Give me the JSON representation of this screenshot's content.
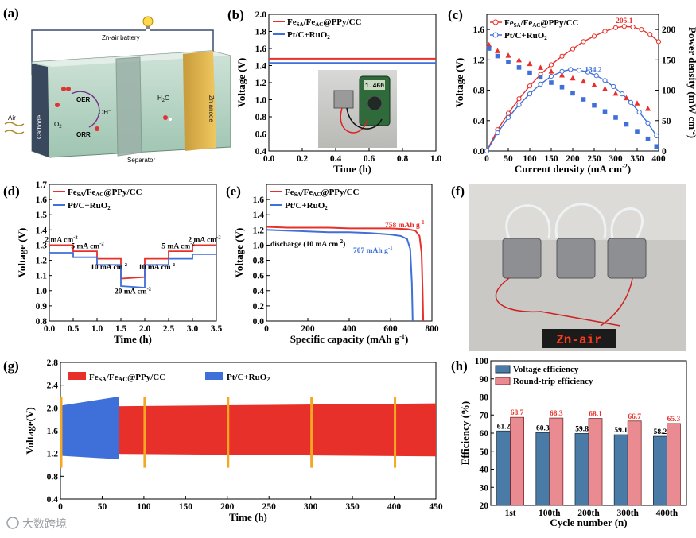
{
  "panel_labels": [
    "(a)",
    "(b)",
    "(c)",
    "(d)",
    "(e)",
    "(f)",
    "(g)",
    "(h)"
  ],
  "schematic": {
    "battery": "Zn-air battery",
    "cathode": "Cathode",
    "anode": "Zn anode",
    "separator": "Separator",
    "air": "Air",
    "oer": "OER",
    "orr": "ORR",
    "o2": "O",
    "o2_sub": "2",
    "oh": "OH",
    "oh_sup": "−",
    "h2o": "H",
    "h2o_sub": "2",
    "h2o_end": "O"
  },
  "legend": {
    "fe_main": "Fe",
    "fe_sub1": "SA",
    "fe_mid": "/Fe",
    "fe_sub2": "AC",
    "fe_tail": "@PPy/CC",
    "pt_main": "Pt/C+RuO",
    "pt_sub": "2"
  },
  "colors": {
    "red": "#e8302a",
    "blue": "#3f6fd8",
    "orange": "#f5a623",
    "bar_blue": "#4a7ba6",
    "bar_red": "#e98b90"
  },
  "watermark": "大数跨境",
  "led_text": "Zn-air",
  "chart_data": [
    {
      "id": "b",
      "type": "line",
      "xlabel": "Time (h)",
      "ylabel": "Voltage (V)",
      "xlim": [
        0,
        1.0
      ],
      "ylim": [
        0.4,
        2.0
      ],
      "xticks": [
        "0.0",
        "0.2",
        "0.4",
        "0.6",
        "0.8",
        "1.0"
      ],
      "yticks": [
        "0.4",
        "0.6",
        "0.8",
        "1.0",
        "1.2",
        "1.4",
        "1.6",
        "1.8",
        "2.0"
      ],
      "series": [
        {
          "name": "FeSA/FeAC@PPy/CC",
          "x": [
            0,
            1.0
          ],
          "y": [
            1.48,
            1.48
          ]
        },
        {
          "name": "Pt/C+RuO2",
          "x": [
            0,
            1.0
          ],
          "y": [
            1.43,
            1.43
          ]
        }
      ],
      "inset": "photo of battery connected to multimeter",
      "meter_reading": "1.460"
    },
    {
      "id": "c",
      "type": "line+scatter",
      "xlabel": "Current density (mA cm",
      "xlabel_sup": "-2",
      "xlabel_end": ")",
      "ylabel": "Voltage (V)",
      "y2label": "Power density (mW cm",
      "y2label_sup": "-2",
      "y2label_end": ")",
      "xlim": [
        0,
        400
      ],
      "ylim": [
        0,
        1.8
      ],
      "y2lim": [
        0,
        225
      ],
      "xticks": [
        "0",
        "50",
        "100",
        "150",
        "200",
        "250",
        "300",
        "350",
        "400"
      ],
      "yticks": [
        "0.0",
        "0.4",
        "0.8",
        "1.2",
        "1.6"
      ],
      "y2ticks": [
        "0",
        "50",
        "100",
        "150",
        "200"
      ],
      "peak_labels": [
        "205.1",
        "134.2"
      ],
      "series": [
        {
          "name": "FeSA/FeAC@PPy/CC power",
          "x": [
            0,
            25,
            50,
            75,
            100,
            125,
            150,
            175,
            200,
            225,
            250,
            275,
            300,
            320,
            340,
            360,
            380,
            400
          ],
          "y": [
            0,
            35,
            62,
            86,
            107,
            126,
            142,
            156,
            168,
            180,
            189,
            197,
            203,
            205.1,
            204,
            200,
            192,
            180
          ]
        },
        {
          "name": "Pt/C+RuO2 power",
          "x": [
            0,
            25,
            50,
            75,
            100,
            125,
            150,
            175,
            195,
            215,
            235,
            255,
            275,
            295,
            315,
            335,
            355,
            375,
            395
          ],
          "y": [
            0,
            30,
            55,
            76,
            94,
            110,
            123,
            131,
            134.2,
            133,
            130,
            124,
            116,
            106,
            94,
            80,
            64,
            46,
            25
          ]
        },
        {
          "name": "FeSA/FeAC@PPy/CC voltage",
          "x": [
            5,
            25,
            50,
            75,
            100,
            125,
            150,
            175,
            200,
            225,
            250,
            275,
            300,
            325,
            350,
            375
          ],
          "y": [
            1.4,
            1.32,
            1.26,
            1.2,
            1.15,
            1.1,
            1.05,
            1.0,
            0.96,
            0.92,
            0.87,
            0.82,
            0.76,
            0.7,
            0.63,
            0.56
          ]
        },
        {
          "name": "Pt/C+RuO2 voltage",
          "x": [
            5,
            25,
            50,
            75,
            100,
            125,
            150,
            175,
            200,
            225,
            250,
            275,
            300,
            325,
            350,
            375,
            395
          ],
          "y": [
            1.35,
            1.25,
            1.17,
            1.1,
            1.03,
            0.97,
            0.9,
            0.84,
            0.76,
            0.68,
            0.6,
            0.52,
            0.44,
            0.35,
            0.26,
            0.16,
            0.06
          ]
        }
      ]
    },
    {
      "id": "d",
      "type": "line",
      "xlabel": "Time (h)",
      "ylabel": "Voltage (V)",
      "xlim": [
        0,
        3.5
      ],
      "ylim": [
        0.8,
        1.7
      ],
      "xticks": [
        "0.0",
        "0.5",
        "1.0",
        "1.5",
        "2.0",
        "2.5",
        "3.0",
        "3.5"
      ],
      "yticks": [
        "0.8",
        "0.9",
        "1.0",
        "1.1",
        "1.2",
        "1.3",
        "1.4",
        "1.5",
        "1.6",
        "1.7"
      ],
      "annotations": [
        "2 mA cm",
        "5 mA cm",
        "10 mA cm",
        "20 mA cm",
        "10 mA cm",
        "5 mA cm",
        "2 mA cm"
      ],
      "annotation_sup": "-2",
      "series": [
        {
          "name": "FeSA/FeAC@PPy/CC",
          "x": [
            0,
            0.5,
            0.5,
            1.0,
            1.0,
            1.5,
            1.5,
            2.0,
            2.0,
            2.5,
            2.5,
            3.0,
            3.0,
            3.5
          ],
          "y": [
            1.3,
            1.3,
            1.26,
            1.26,
            1.21,
            1.21,
            1.08,
            1.09,
            1.21,
            1.21,
            1.26,
            1.26,
            1.3,
            1.3
          ]
        },
        {
          "name": "Pt/C+RuO2",
          "x": [
            0,
            0.5,
            0.5,
            1.0,
            1.0,
            1.5,
            1.5,
            2.0,
            2.0,
            2.5,
            2.5,
            3.0,
            3.0,
            3.5
          ],
          "y": [
            1.25,
            1.25,
            1.22,
            1.22,
            1.17,
            1.17,
            1.03,
            1.02,
            1.17,
            1.17,
            1.21,
            1.21,
            1.24,
            1.24
          ]
        }
      ]
    },
    {
      "id": "e",
      "type": "line",
      "xlabel": "Specific capacity (mAh g",
      "xlabel_sup": "-1",
      "xlabel_end": ")",
      "ylabel": "Voltage (V)",
      "xlim": [
        0,
        800
      ],
      "ylim": [
        0,
        1.8
      ],
      "xticks": [
        "0",
        "200",
        "400",
        "600",
        "800"
      ],
      "yticks": [
        "0.0",
        "0.2",
        "0.4",
        "0.6",
        "0.8",
        "1.0",
        "1.2",
        "1.4",
        "1.6"
      ],
      "annotations": [
        "758 mAh g",
        "707 mAh g",
        "discharge (10 mA cm"
      ],
      "annotation_sups": [
        "-1",
        "-1",
        "-2"
      ],
      "annotation_end": ")",
      "series": [
        {
          "name": "FeSA/FeAC@PPy/CC",
          "x": [
            0,
            100,
            200,
            300,
            400,
            500,
            600,
            680,
            720,
            740,
            750,
            755,
            758
          ],
          "y": [
            1.24,
            1.23,
            1.23,
            1.23,
            1.22,
            1.22,
            1.22,
            1.21,
            1.19,
            1.12,
            0.9,
            0.4,
            0.0
          ]
        },
        {
          "name": "Pt/C+RuO2",
          "x": [
            0,
            100,
            200,
            300,
            400,
            500,
            600,
            650,
            680,
            695,
            703,
            707
          ],
          "y": [
            1.2,
            1.19,
            1.18,
            1.17,
            1.17,
            1.16,
            1.14,
            1.12,
            1.08,
            0.95,
            0.5,
            0.0
          ]
        }
      ]
    },
    {
      "id": "g",
      "type": "area",
      "xlabel": "Time (h)",
      "ylabel": "Voltage(V)",
      "xlim": [
        0,
        450
      ],
      "ylim": [
        0.4,
        2.8
      ],
      "xticks": [
        "0",
        "50",
        "100",
        "150",
        "200",
        "250",
        "300",
        "350",
        "400",
        "450"
      ],
      "yticks": [
        "0.4",
        "0.8",
        "1.2",
        "1.6",
        "2.0",
        "2.4",
        "2.8"
      ],
      "series": [
        {
          "name": "FeSA/FeAC@PPy/CC",
          "x": [
            0,
            450
          ],
          "charge": [
            2.02,
            2.08
          ],
          "discharge": [
            1.2,
            1.15
          ]
        },
        {
          "name": "Pt/C+RuO2",
          "x": [
            0,
            70
          ],
          "charge": [
            2.04,
            2.2
          ],
          "discharge": [
            1.16,
            1.1
          ]
        }
      ],
      "markers_x": [
        0,
        100,
        200,
        300,
        400
      ]
    },
    {
      "id": "h",
      "type": "bar",
      "xlabel": "Cycle number (n)",
      "ylabel": "Efficiency (%)",
      "ylim": [
        20,
        100
      ],
      "yticks": [
        "20",
        "30",
        "40",
        "50",
        "60",
        "70",
        "80",
        "90",
        "100"
      ],
      "categories": [
        "1st",
        "100th",
        "200th",
        "300th",
        "400th"
      ],
      "series": [
        {
          "name": "Voltage efficiency",
          "values": [
            61.2,
            60.3,
            59.8,
            59.1,
            58.2
          ]
        },
        {
          "name": "Round-trip efficiency",
          "values": [
            68.7,
            68.3,
            68.1,
            66.7,
            65.3
          ]
        }
      ]
    }
  ]
}
